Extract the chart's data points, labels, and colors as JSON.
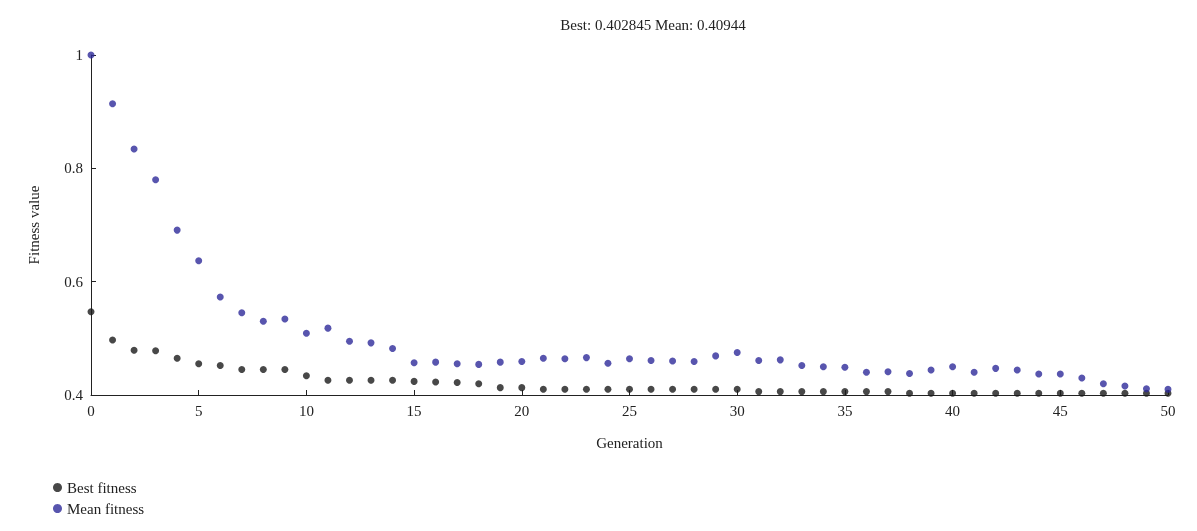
{
  "chart_data": {
    "type": "scatter",
    "title": "Best: 0.402845 Mean: 0.40944",
    "xlabel": "Generation",
    "ylabel": "Fitness value",
    "x": [
      0,
      1,
      2,
      3,
      4,
      5,
      6,
      7,
      8,
      9,
      10,
      11,
      12,
      13,
      14,
      15,
      16,
      17,
      18,
      19,
      20,
      21,
      22,
      23,
      24,
      25,
      26,
      27,
      28,
      29,
      30,
      31,
      32,
      33,
      34,
      35,
      36,
      37,
      38,
      39,
      40,
      41,
      42,
      43,
      44,
      45,
      46,
      47,
      48,
      49,
      50
    ],
    "series": [
      {
        "name": "Best fitness",
        "color": "#1a1a1a",
        "values": [
          0.547,
          0.497,
          0.479,
          0.478,
          0.465,
          0.455,
          0.452,
          0.445,
          0.445,
          0.445,
          0.434,
          0.426,
          0.426,
          0.426,
          0.426,
          0.424,
          0.423,
          0.422,
          0.42,
          0.413,
          0.413,
          0.41,
          0.41,
          0.41,
          0.41,
          0.41,
          0.41,
          0.41,
          0.41,
          0.41,
          0.41,
          0.406,
          0.406,
          0.406,
          0.406,
          0.406,
          0.406,
          0.406,
          0.403,
          0.403,
          0.403,
          0.403,
          0.403,
          0.403,
          0.403,
          0.403,
          0.403,
          0.403,
          0.403,
          0.403,
          0.403
        ]
      },
      {
        "name": "Mean fitness",
        "color": "#2e2a9a",
        "values": [
          1.0,
          0.914,
          0.834,
          0.78,
          0.691,
          0.637,
          0.573,
          0.545,
          0.53,
          0.534,
          0.509,
          0.518,
          0.495,
          0.492,
          0.482,
          0.457,
          0.458,
          0.455,
          0.454,
          0.458,
          0.459,
          0.465,
          0.464,
          0.466,
          0.456,
          0.464,
          0.461,
          0.46,
          0.459,
          0.469,
          0.475,
          0.461,
          0.462,
          0.452,
          0.45,
          0.449,
          0.44,
          0.441,
          0.438,
          0.444,
          0.45,
          0.44,
          0.447,
          0.444,
          0.437,
          0.437,
          0.43,
          0.42,
          0.416,
          0.411,
          0.41
        ]
      }
    ],
    "xlim": [
      0,
      50
    ],
    "xticks": [
      0,
      5,
      10,
      15,
      20,
      25,
      30,
      35,
      40,
      45,
      50
    ],
    "ylim": [
      0.4,
      1
    ],
    "yticks": [
      0.4,
      0.6,
      0.8,
      1
    ],
    "grid": false,
    "legend": "bottom left",
    "marker": "circle"
  }
}
